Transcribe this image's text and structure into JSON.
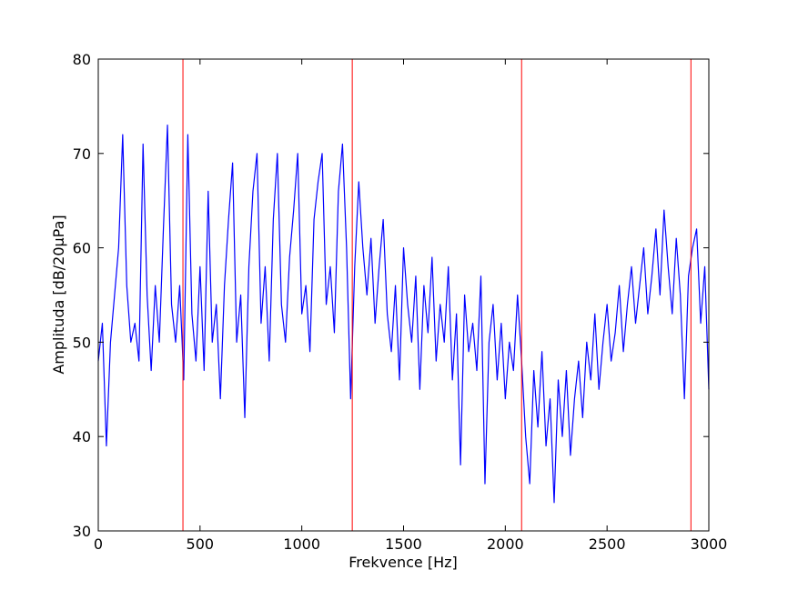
{
  "chart_data": {
    "type": "line",
    "xlabel": "Frekvence [Hz]",
    "ylabel": "Amplituda [dB/20μPa]",
    "x": [
      0,
      20,
      40,
      60,
      80,
      100,
      120,
      140,
      160,
      180,
      200,
      220,
      240,
      260,
      280,
      300,
      320,
      340,
      360,
      380,
      400,
      420,
      440,
      460,
      480,
      500,
      520,
      540,
      560,
      580,
      600,
      620,
      640,
      660,
      680,
      700,
      720,
      740,
      760,
      780,
      800,
      820,
      840,
      860,
      880,
      900,
      920,
      940,
      960,
      980,
      1000,
      1020,
      1040,
      1060,
      1080,
      1100,
      1120,
      1140,
      1160,
      1180,
      1200,
      1220,
      1240,
      1260,
      1280,
      1300,
      1320,
      1340,
      1360,
      1380,
      1400,
      1420,
      1440,
      1460,
      1480,
      1500,
      1520,
      1540,
      1560,
      1580,
      1600,
      1620,
      1640,
      1660,
      1680,
      1700,
      1720,
      1740,
      1760,
      1780,
      1800,
      1820,
      1840,
      1860,
      1880,
      1900,
      1920,
      1940,
      1960,
      1980,
      2000,
      2020,
      2040,
      2060,
      2080,
      2100,
      2120,
      2140,
      2160,
      2180,
      2200,
      2220,
      2240,
      2260,
      2280,
      2300,
      2320,
      2340,
      2360,
      2380,
      2400,
      2420,
      2440,
      2460,
      2480,
      2500,
      2520,
      2540,
      2560,
      2580,
      2600,
      2620,
      2640,
      2660,
      2680,
      2700,
      2720,
      2740,
      2760,
      2780,
      2800,
      2820,
      2840,
      2860,
      2880,
      2900,
      2920,
      2940,
      2960,
      2980,
      3000
    ],
    "values": [
      48,
      52,
      39,
      50,
      55,
      60,
      72,
      56,
      50,
      52,
      48,
      71,
      55,
      47,
      56,
      50,
      62,
      73,
      54,
      50,
      56,
      46,
      72,
      53,
      48,
      58,
      47,
      66,
      50,
      54,
      44,
      56,
      63,
      69,
      50,
      55,
      42,
      58,
      66,
      70,
      52,
      58,
      48,
      63,
      70,
      54,
      50,
      59,
      64,
      70,
      53,
      56,
      49,
      63,
      67,
      70,
      54,
      58,
      51,
      66,
      71,
      60,
      44,
      58,
      67,
      60,
      55,
      61,
      52,
      58,
      63,
      53,
      49,
      56,
      46,
      60,
      54,
      50,
      57,
      45,
      56,
      51,
      59,
      48,
      54,
      50,
      58,
      46,
      53,
      37,
      55,
      49,
      52,
      47,
      57,
      35,
      50,
      54,
      46,
      52,
      44,
      50,
      47,
      55,
      48,
      40,
      35,
      47,
      41,
      49,
      39,
      44,
      33,
      46,
      40,
      47,
      38,
      44,
      48,
      42,
      50,
      46,
      53,
      45,
      50,
      54,
      48,
      51,
      56,
      49,
      54,
      58,
      52,
      56,
      60,
      53,
      57,
      62,
      55,
      64,
      58,
      53,
      61,
      55,
      44,
      57,
      60,
      62,
      52,
      58,
      45
    ],
    "color": "#0000ff",
    "vlines": [
      416,
      1248,
      2080,
      2912
    ],
    "vline_color": "#ff0000",
    "xlim": [
      0,
      3000
    ],
    "xticks": [
      0,
      500,
      1000,
      1500,
      2000,
      2500,
      3000
    ],
    "ylim": [
      30,
      80
    ],
    "yticks": [
      30,
      40,
      50,
      60,
      70,
      80
    ],
    "grid": false
  }
}
